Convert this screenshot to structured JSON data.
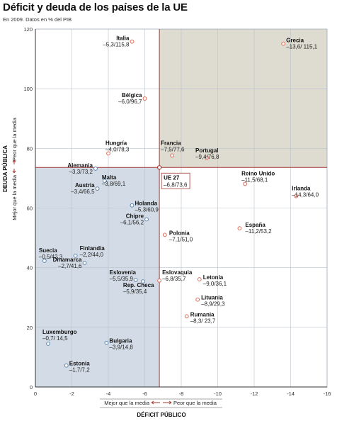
{
  "title": "Déficit y deuda de los países de la UE",
  "subtitle": "En 2009. Datos en % del PIB",
  "chart_data": {
    "type": "scatter",
    "title": "Déficit y deuda de los países de la UE",
    "subtitle": "En 2009. Datos en % del PIB",
    "xlabel": "DÉFICIT PÚBLICO",
    "ylabel": "DEUDA PÚBLICA",
    "xlim": [
      0,
      -16
    ],
    "ylim": [
      0,
      120
    ],
    "x_ticks": [
      0,
      -2,
      -4,
      -6,
      -8,
      -10,
      -12,
      -14,
      -16
    ],
    "y_ticks": [
      0,
      20,
      40,
      60,
      80,
      100,
      120
    ],
    "x_tick_labels": [
      "0",
      "-2",
      "-4",
      "-6",
      "-8",
      "-10",
      "-12",
      "-14",
      "-16"
    ],
    "y_tick_labels": [
      "0",
      "20",
      "40",
      "60",
      "80",
      "100",
      "120"
    ],
    "grid": true,
    "reference": {
      "name": "UE 27",
      "label": "UE 27",
      "value_label": "–6,8/73,6",
      "x": -6.8,
      "y": 73.6
    },
    "x_hint_better": "Mejor que la media",
    "x_hint_worse": "Peor que la media",
    "y_hint_better": "Mejor que la media",
    "y_hint_worse": "Peor que la media",
    "colors": {
      "point": "#e06a55",
      "point_blue": "#5b86b0",
      "reference_line": "#a33a32",
      "better_quadrant": "#d3dce6",
      "worse_quadrant": "#dedbd0",
      "grid": "#b8c2cc"
    },
    "points": [
      {
        "name": "Italia",
        "x": -5.3,
        "y": 115.8,
        "label": "–5,3/115,8"
      },
      {
        "name": "Grecia",
        "x": -13.6,
        "y": 115.1,
        "label": "–13,6/ 115,1"
      },
      {
        "name": "Bélgica",
        "x": -6.0,
        "y": 96.7,
        "label": "–6,0/96,7"
      },
      {
        "name": "Hungría",
        "x": -4.0,
        "y": 78.3,
        "label": "–4,0/78,3"
      },
      {
        "name": "Francia",
        "x": -7.5,
        "y": 77.6,
        "label": "–7,5/77,6"
      },
      {
        "name": "Portugal",
        "x": -9.4,
        "y": 76.8,
        "label": "–9,4/76,8"
      },
      {
        "name": "Alemania",
        "x": -3.3,
        "y": 73.2,
        "label": "–3,3/73,2"
      },
      {
        "name": "Reino Unido",
        "x": -11.5,
        "y": 68.1,
        "label": "–11,5/68,1"
      },
      {
        "name": "Malta",
        "x": -3.8,
        "y": 69.1,
        "label": "–3,8/69,1"
      },
      {
        "name": "Irlanda",
        "x": -14.3,
        "y": 64.0,
        "label": "–14,3/64,0"
      },
      {
        "name": "Austria",
        "x": -3.4,
        "y": 66.5,
        "label": "–3,4/66,5"
      },
      {
        "name": "Holanda",
        "x": -5.3,
        "y": 60.9,
        "label": "–5,3/60,9"
      },
      {
        "name": "Chipre",
        "x": -6.1,
        "y": 56.2,
        "label": "–6,1/56,2"
      },
      {
        "name": "España",
        "x": -11.2,
        "y": 53.2,
        "label": "–11,2/53,2"
      },
      {
        "name": "Polonia",
        "x": -7.1,
        "y": 51.0,
        "label": "–7,1/51,0"
      },
      {
        "name": "Suecia",
        "x": -0.5,
        "y": 42.3,
        "label": "–0,5/42,3"
      },
      {
        "name": "Finlandia",
        "x": -2.2,
        "y": 44.0,
        "label": "–2,2/44,0"
      },
      {
        "name": "Dinamarca",
        "x": -2.7,
        "y": 41.6,
        "label": "–2,7/41,6"
      },
      {
        "name": "Eslovenia",
        "x": -5.5,
        "y": 35.9,
        "label": "–5,5/35,9"
      },
      {
        "name": "Eslovaquia",
        "x": -6.8,
        "y": 35.7,
        "label": "–6,8/35,7"
      },
      {
        "name": "Rep. Checa",
        "x": -5.9,
        "y": 35.4,
        "label": "–5,9/35,4"
      },
      {
        "name": "Letonia",
        "x": -9.0,
        "y": 36.1,
        "label": "–9,0/36,1"
      },
      {
        "name": "Lituania",
        "x": -8.9,
        "y": 29.3,
        "label": "–8,9/29,3"
      },
      {
        "name": "Rumania",
        "x": -8.3,
        "y": 23.7,
        "label": "–8,3/ 23,7"
      },
      {
        "name": "Luxemburgo",
        "x": -0.7,
        "y": 14.5,
        "label": "–0,7/ 14,5"
      },
      {
        "name": "Bulgaria",
        "x": -3.9,
        "y": 14.8,
        "label": "–3,9/14,8"
      },
      {
        "name": "Estonia",
        "x": -1.7,
        "y": 7.2,
        "label": "–1,7/7,2"
      }
    ]
  }
}
